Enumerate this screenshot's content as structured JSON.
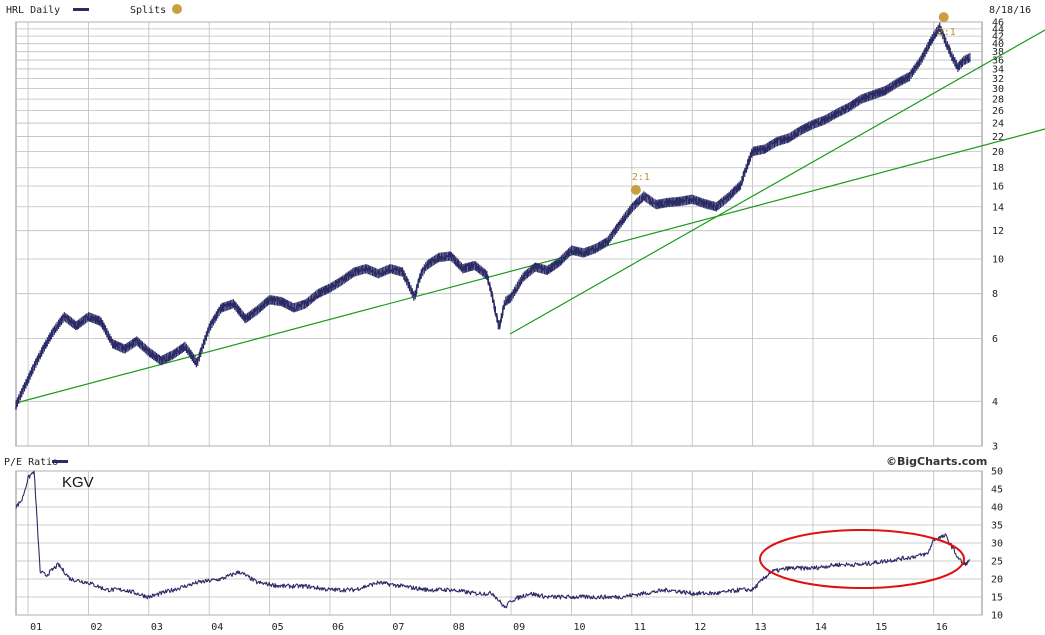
{
  "header": {
    "symbol_label": "HRL Daily",
    "splits_label": "Splits",
    "date_label": "8/18/16"
  },
  "pe_panel": {
    "label": "P/E Ratio",
    "brand": "©BigCharts.com",
    "annotation": "KGV"
  },
  "colors": {
    "price": "#2b2b66",
    "trend": "#1a9a1a",
    "grid": "#bdbdbd",
    "split": "#c8a040",
    "highlight": "#e01010"
  },
  "chart_data": [
    {
      "type": "line",
      "scale": "log",
      "ylim": [
        3,
        46
      ],
      "yticks": [
        "3",
        "4",
        "6",
        "8",
        "10",
        "12",
        "14",
        "16",
        "18",
        "20",
        "22",
        "24",
        "26",
        "28",
        "30",
        "32",
        "34",
        "36",
        "38",
        "40",
        "42",
        "44",
        "46"
      ],
      "x_ticks": [
        "01",
        "02",
        "03",
        "04",
        "05",
        "06",
        "07",
        "08",
        "09",
        "10",
        "11",
        "12",
        "13",
        "14",
        "15",
        "16"
      ],
      "xlim": [
        2000.8,
        2016.8
      ],
      "series": [
        {
          "x": [
            2000.8,
            2001.0,
            2001.2,
            2001.4,
            2001.6,
            2001.8,
            2002.0,
            2002.2,
            2002.4,
            2002.6,
            2002.8,
            2003.0,
            2003.2,
            2003.4,
            2003.6,
            2003.8,
            2004.0,
            2004.2,
            2004.4,
            2004.6,
            2004.8,
            2005.0,
            2005.2,
            2005.4,
            2005.6,
            2005.8,
            2006.0,
            2006.2,
            2006.4,
            2006.6,
            2006.8,
            2007.0,
            2007.2,
            2007.4,
            2007.5,
            2007.6,
            2007.8,
            2008.0,
            2008.2,
            2008.4,
            2008.6,
            2008.8,
            2008.9,
            2009.0,
            2009.2,
            2009.4,
            2009.6,
            2009.8,
            2010.0,
            2010.2,
            2010.4,
            2010.6,
            2010.8,
            2011.0,
            2011.2,
            2011.4,
            2011.6,
            2011.8,
            2012.0,
            2012.2,
            2012.4,
            2012.6,
            2012.8,
            2013.0,
            2013.2,
            2013.4,
            2013.6,
            2013.8,
            2014.0,
            2014.2,
            2014.4,
            2014.6,
            2014.8,
            2015.0,
            2015.2,
            2015.4,
            2015.6,
            2015.8,
            2016.0,
            2016.1,
            2016.2,
            2016.3,
            2016.4,
            2016.5,
            2016.6
          ],
          "y": [
            3.9,
            4.6,
            5.4,
            6.2,
            6.9,
            6.5,
            6.9,
            6.7,
            5.8,
            5.6,
            5.9,
            5.5,
            5.2,
            5.4,
            5.7,
            5.1,
            6.4,
            7.3,
            7.5,
            6.8,
            7.2,
            7.7,
            7.6,
            7.3,
            7.5,
            8.0,
            8.3,
            8.7,
            9.2,
            9.4,
            9.1,
            9.4,
            9.2,
            7.8,
            9.0,
            9.6,
            10.1,
            10.2,
            9.4,
            9.6,
            9.0,
            6.4,
            7.6,
            7.8,
            8.9,
            9.5,
            9.3,
            9.8,
            10.6,
            10.4,
            10.7,
            11.2,
            12.5,
            13.9,
            15.0,
            14.2,
            14.4,
            14.5,
            14.7,
            14.3,
            14.0,
            14.9,
            16.1,
            20.0,
            20.3,
            21.3,
            21.8,
            22.9,
            23.8,
            24.5,
            25.6,
            26.6,
            28.0,
            28.8,
            29.6,
            31.1,
            32.4,
            36.2,
            42.0,
            44.5,
            40.4,
            36.9,
            34.4,
            35.9,
            36.6
          ]
        }
      ],
      "splits": [
        {
          "x": 2011.0,
          "label": "2:1"
        },
        {
          "x": 2016.1,
          "label": "2:1"
        }
      ]
    },
    {
      "type": "line",
      "ylim": [
        10,
        50
      ],
      "yticks": [
        "10",
        "15",
        "20",
        "25",
        "30",
        "35",
        "40",
        "45",
        "50"
      ],
      "xlim": [
        2000.8,
        2016.8
      ],
      "series": [
        {
          "x": [
            2000.8,
            2000.9,
            2001.0,
            2001.1,
            2001.2,
            2001.3,
            2001.5,
            2001.7,
            2002.0,
            2002.3,
            2002.6,
            2003.0,
            2003.4,
            2003.8,
            2004.2,
            2004.5,
            2004.8,
            2005.2,
            2005.6,
            2006.0,
            2006.4,
            2006.8,
            2007.2,
            2007.6,
            2008.0,
            2008.4,
            2008.7,
            2008.9,
            2009.0,
            2009.3,
            2009.6,
            2010.0,
            2010.4,
            2010.8,
            2011.2,
            2011.6,
            2012.0,
            2012.4,
            2012.8,
            2013.0,
            2013.3,
            2013.6,
            2014.0,
            2014.4,
            2014.8,
            2015.2,
            2015.6,
            2015.9,
            2016.0,
            2016.2,
            2016.3,
            2016.4,
            2016.5,
            2016.6
          ],
          "y": [
            40,
            42,
            48,
            50,
            22,
            21,
            24,
            20,
            19,
            17,
            17,
            15,
            17,
            19,
            20,
            22,
            19,
            18,
            18,
            17,
            17,
            19,
            18,
            17,
            17,
            16,
            16,
            12,
            14,
            16,
            15,
            15,
            15,
            15,
            16,
            17,
            16,
            16,
            17,
            17,
            22,
            23,
            23,
            24,
            24,
            25,
            26,
            27,
            31,
            32,
            29,
            26,
            24,
            25
          ]
        }
      ]
    }
  ]
}
